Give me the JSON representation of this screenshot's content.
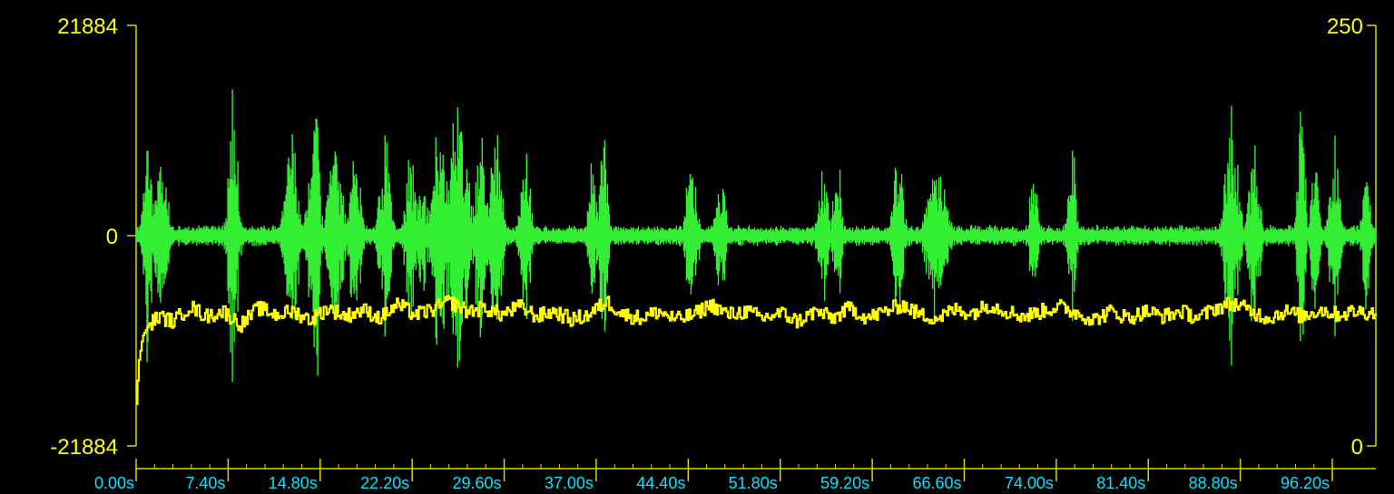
{
  "chart_data": {
    "type": "line",
    "title": "",
    "xlabel": "",
    "ylabel": "",
    "x_tick_labels": [
      "0.00s",
      "7.40s",
      "14.80s",
      "22.20s",
      "29.60s",
      "37.00s",
      "44.40s",
      "51.80s",
      "59.20s",
      "66.60s",
      "74.00s",
      "81.40s",
      "88.80s",
      "96.20s"
    ],
    "x_ticks_seconds": [
      0,
      7.4,
      14.8,
      22.2,
      29.6,
      37.0,
      44.4,
      51.8,
      59.2,
      66.6,
      74.0,
      81.4,
      88.8,
      96.2
    ],
    "xlim": [
      0,
      99.7
    ],
    "y_left_tick_labels": [
      "21884",
      "0",
      "-21884"
    ],
    "y_left_ticks": [
      21884,
      0,
      -21884
    ],
    "ylim_left": [
      -21884,
      21884
    ],
    "y_right_tick_labels": [
      "250",
      "0"
    ],
    "y_right_ticks": [
      250,
      0
    ],
    "ylim_right": [
      0,
      250
    ],
    "grid": false,
    "series": [
      {
        "axis": "left",
        "color": "#33ee33",
        "baseline_envelope": 900,
        "bursts": [
          {
            "center": 0.9,
            "width": 0.6,
            "amplitude": 16000
          },
          {
            "center": 2.0,
            "width": 0.9,
            "amplitude": 11000
          },
          {
            "center": 7.8,
            "width": 0.7,
            "amplitude": 18000
          },
          {
            "center": 12.5,
            "width": 1.0,
            "amplitude": 12000
          },
          {
            "center": 14.0,
            "width": 0.7,
            "amplitude": 8000
          },
          {
            "center": 14.4,
            "width": 0.6,
            "amplitude": 21000
          },
          {
            "center": 16.0,
            "width": 1.0,
            "amplitude": 13000
          },
          {
            "center": 17.6,
            "width": 0.8,
            "amplitude": 11000
          },
          {
            "center": 20.0,
            "width": 0.8,
            "amplitude": 12000
          },
          {
            "center": 22.1,
            "width": 0.8,
            "amplitude": 10000
          },
          {
            "center": 23.0,
            "width": 0.6,
            "amplitude": 8000
          },
          {
            "center": 24.4,
            "width": 1.2,
            "amplitude": 14000
          },
          {
            "center": 25.9,
            "width": 1.4,
            "amplitude": 15000
          },
          {
            "center": 27.7,
            "width": 0.9,
            "amplitude": 12000
          },
          {
            "center": 28.9,
            "width": 0.9,
            "amplitude": 13000
          },
          {
            "center": 31.3,
            "width": 0.8,
            "amplitude": 10000
          },
          {
            "center": 36.7,
            "width": 0.6,
            "amplitude": 9000
          },
          {
            "center": 37.6,
            "width": 0.6,
            "amplitude": 13000
          },
          {
            "center": 44.7,
            "width": 0.8,
            "amplitude": 10000
          },
          {
            "center": 47.0,
            "width": 0.7,
            "amplitude": 8000
          },
          {
            "center": 55.3,
            "width": 0.8,
            "amplitude": 8000
          },
          {
            "center": 56.4,
            "width": 0.6,
            "amplitude": 11000
          },
          {
            "center": 61.3,
            "width": 0.7,
            "amplitude": 12000
          },
          {
            "center": 64.4,
            "width": 1.3,
            "amplitude": 11000
          },
          {
            "center": 72.2,
            "width": 0.6,
            "amplitude": 10000
          },
          {
            "center": 75.3,
            "width": 0.6,
            "amplitude": 11000
          },
          {
            "center": 88.1,
            "width": 1.0,
            "amplitude": 14000
          },
          {
            "center": 89.9,
            "width": 0.8,
            "amplitude": 12000
          },
          {
            "center": 93.7,
            "width": 0.5,
            "amplitude": 21500
          },
          {
            "center": 94.8,
            "width": 0.6,
            "amplitude": 10000
          },
          {
            "center": 96.4,
            "width": 0.8,
            "amplitude": 11000
          },
          {
            "center": 98.9,
            "width": 0.6,
            "amplitude": 9000
          }
        ]
      },
      {
        "axis": "right",
        "color": "#ffff00",
        "start_value": 25,
        "mean_value": 80,
        "anchor_points": [
          [
            0.0,
            25
          ],
          [
            0.2,
            50
          ],
          [
            0.5,
            65
          ],
          [
            1.0,
            72
          ],
          [
            1.8,
            77
          ],
          [
            3.0,
            74
          ],
          [
            4.3,
            83
          ],
          [
            5.6,
            77
          ],
          [
            7.0,
            80
          ],
          [
            8.4,
            72
          ],
          [
            9.8,
            82
          ],
          [
            11.2,
            78
          ],
          [
            12.6,
            80
          ],
          [
            14.0,
            75
          ],
          [
            15.4,
            82
          ],
          [
            16.8,
            77
          ],
          [
            18.2,
            81
          ],
          [
            19.6,
            76
          ],
          [
            21.0,
            84
          ],
          [
            22.4,
            78
          ],
          [
            23.8,
            81
          ],
          [
            25.2,
            86
          ],
          [
            26.6,
            80
          ],
          [
            28.0,
            82
          ],
          [
            29.4,
            78
          ],
          [
            30.8,
            83
          ],
          [
            32.2,
            77
          ],
          [
            33.6,
            80
          ],
          [
            35.0,
            75
          ],
          [
            36.4,
            78
          ],
          [
            37.8,
            86
          ],
          [
            39.2,
            78
          ],
          [
            40.6,
            76
          ],
          [
            42.0,
            80
          ],
          [
            43.4,
            75
          ],
          [
            44.8,
            78
          ],
          [
            46.2,
            84
          ],
          [
            47.6,
            78
          ],
          [
            49.0,
            80
          ],
          [
            50.4,
            76
          ],
          [
            51.8,
            79
          ],
          [
            53.2,
            74
          ],
          [
            54.6,
            80
          ],
          [
            56.0,
            76
          ],
          [
            57.4,
            82
          ],
          [
            58.8,
            76
          ],
          [
            60.2,
            80
          ],
          [
            61.6,
            84
          ],
          [
            63.0,
            78
          ],
          [
            64.4,
            76
          ],
          [
            65.8,
            81
          ],
          [
            67.2,
            79
          ],
          [
            68.6,
            84
          ],
          [
            70.0,
            80
          ],
          [
            71.4,
            77
          ],
          [
            72.8,
            80
          ],
          [
            74.2,
            83
          ],
          [
            75.6,
            79
          ],
          [
            77.0,
            75
          ],
          [
            78.4,
            80
          ],
          [
            79.8,
            76
          ],
          [
            81.2,
            80
          ],
          [
            82.6,
            77
          ],
          [
            84.0,
            80
          ],
          [
            85.4,
            76
          ],
          [
            86.8,
            82
          ],
          [
            88.2,
            85
          ],
          [
            89.6,
            80
          ],
          [
            91.0,
            76
          ],
          [
            92.4,
            80
          ],
          [
            93.8,
            77
          ],
          [
            95.2,
            81
          ],
          [
            96.6,
            78
          ],
          [
            98.0,
            80
          ],
          [
            99.7,
            79
          ]
        ]
      }
    ]
  },
  "colors": {
    "plot_background": "#000000",
    "axis_left": "#d8d800",
    "axis_right": "#d8d800",
    "axis_x": "#d8d800",
    "y_tick_label_text": "#ffff00",
    "x_tick_label_text": "#00e5ff"
  }
}
